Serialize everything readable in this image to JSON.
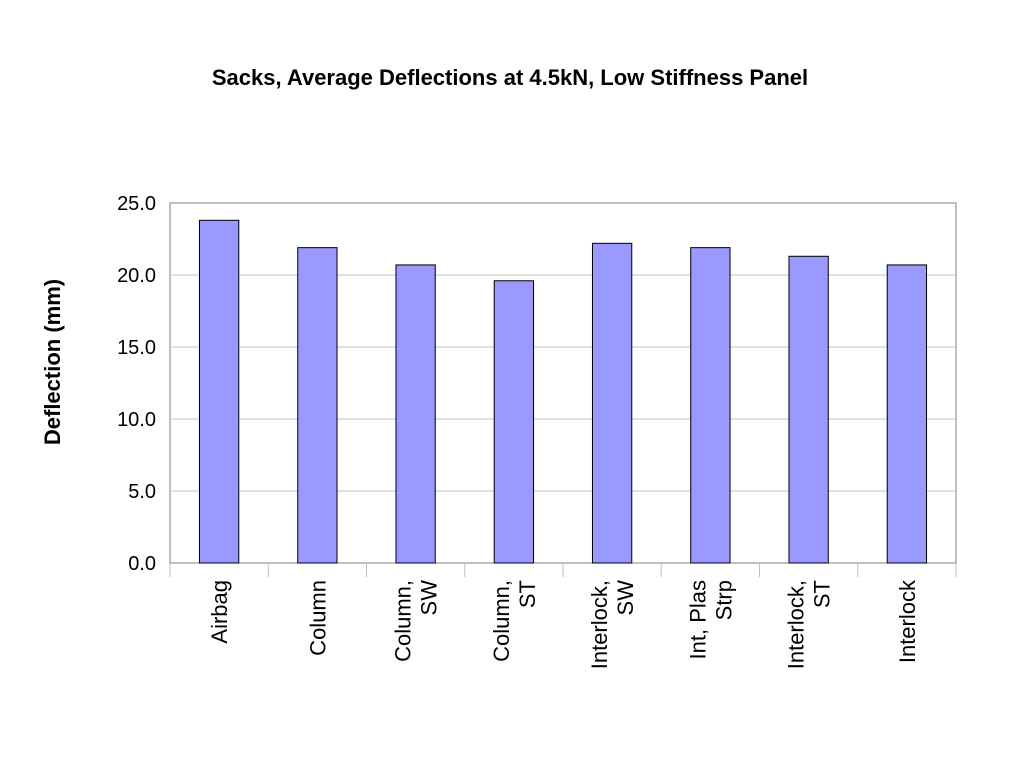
{
  "chart_data": {
    "type": "bar",
    "title": "Sacks, Average Deflections at 4.5kN, Low Stiffness Panel",
    "xlabel": "",
    "ylabel": "Deflection (mm)",
    "ylim": [
      0,
      25
    ],
    "yticks": [
      "0.0",
      "5.0",
      "10.0",
      "15.0",
      "20.0",
      "25.0"
    ],
    "grid": true,
    "categories": [
      [
        "Airbag"
      ],
      [
        "Column"
      ],
      [
        "Column,",
        "SW"
      ],
      [
        "Column,",
        "ST"
      ],
      [
        "Interlock,",
        "SW"
      ],
      [
        "Int, Plas",
        "Strp"
      ],
      [
        "Interlock,",
        "ST"
      ],
      [
        "Interlock"
      ]
    ],
    "values": [
      23.8,
      21.9,
      20.7,
      19.6,
      22.2,
      21.9,
      21.3,
      20.7
    ],
    "colors": {
      "bar": "#9999ff",
      "bar_stroke": "#000000",
      "grid": "#c0c0c0",
      "axis": "#808080"
    }
  }
}
